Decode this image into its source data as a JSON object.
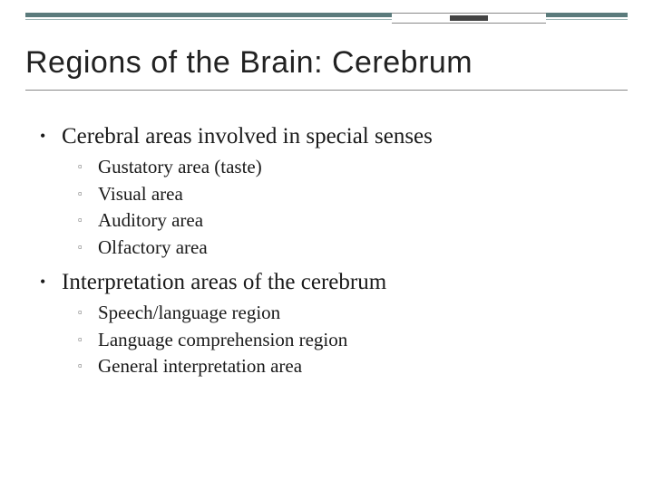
{
  "title": "Regions of the Brain: Cerebrum",
  "sections": [
    {
      "heading": "Cerebral areas involved in special senses",
      "items": [
        "Gustatory area (taste)",
        "Visual area",
        "Auditory area",
        "Olfactory area"
      ]
    },
    {
      "heading": "Interpretation areas of the cerebrum",
      "items": [
        "Speech/language region",
        "Language comprehension region",
        "General interpretation area"
      ]
    }
  ],
  "colors": {
    "border_thick": "#5b7b7c",
    "border_thin": "#9cb3b3",
    "text": "#1a1a1a"
  }
}
